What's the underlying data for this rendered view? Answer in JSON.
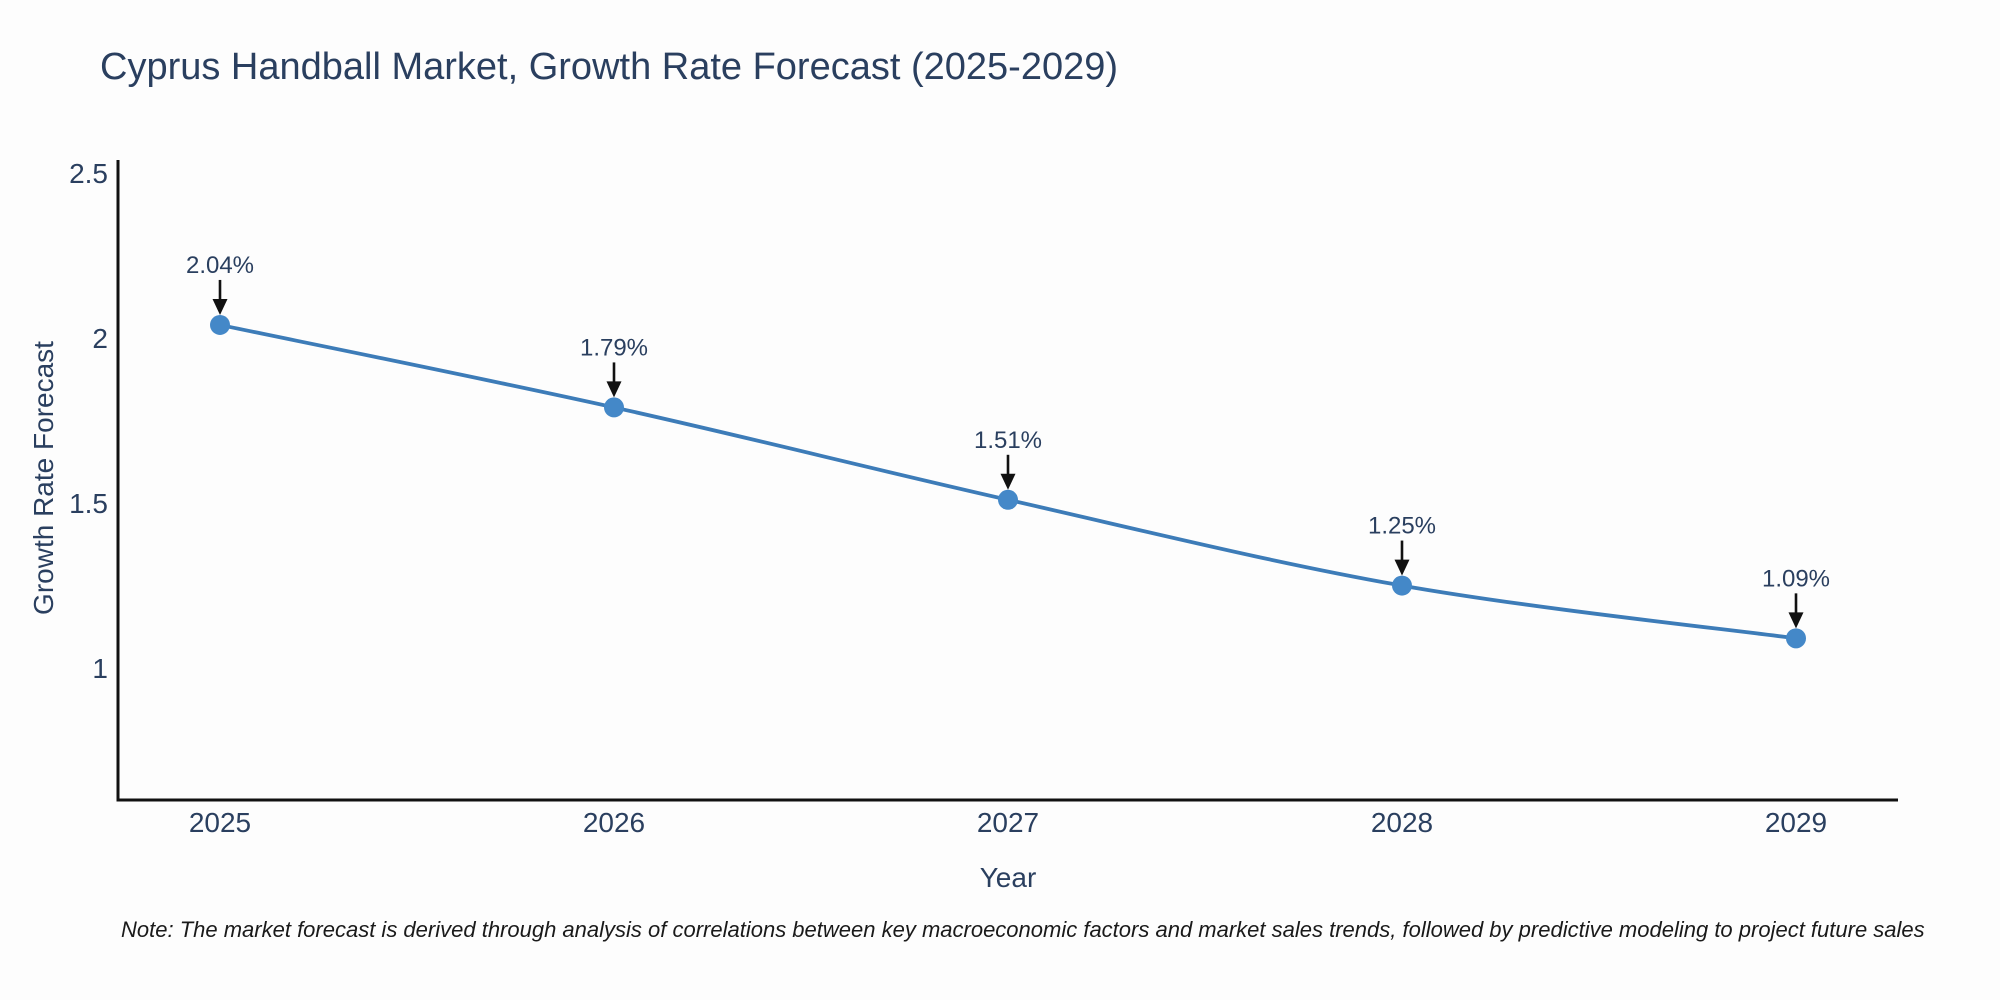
{
  "title": "Cyprus Handball Market, Growth Rate Forecast (2025-2029)",
  "note": "Note: The market forecast is derived through analysis of correlations between key macroeconomic factors and market sales trends, followed by predictive modeling to project future sales",
  "chart_data": {
    "type": "line",
    "title": "Cyprus Handball Market, Growth Rate Forecast (2025-2029)",
    "categories": [
      "2025",
      "2026",
      "2027",
      "2028",
      "2029"
    ],
    "series": [
      {
        "name": "Growth Rate Forecast",
        "values": [
          2.04,
          1.79,
          1.51,
          1.25,
          1.09
        ]
      }
    ],
    "point_labels": [
      "2.04%",
      "1.79%",
      "1.51%",
      "1.25%",
      "1.09%"
    ],
    "xlabel": "Year",
    "ylabel": "Growth Rate Forecast",
    "yticks": [
      1,
      1.5,
      2,
      2.5
    ],
    "ylim": [
      0.6,
      2.54
    ],
    "grid": false,
    "legend_position": "none",
    "marker_style": "circle",
    "annotation_arrows": true
  },
  "colors": {
    "background": "#fdfdfd",
    "line": "#3d7cb8",
    "marker": "#4488c8",
    "axis": "#111111",
    "arrow": "#111111",
    "title_text": "#2a3f5f",
    "tick_text": "#2a3f5f",
    "annotation_text": "#2a3f5f",
    "note_text": "#1a1a1a"
  }
}
